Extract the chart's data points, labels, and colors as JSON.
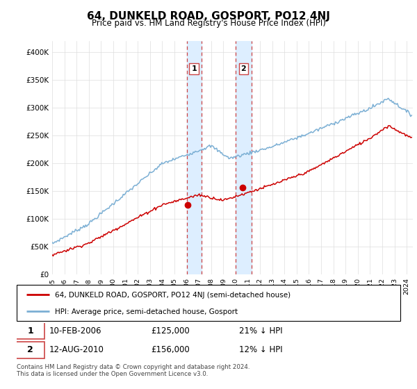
{
  "title": "64, DUNKELD ROAD, GOSPORT, PO12 4NJ",
  "subtitle": "Price paid vs. HM Land Registry's House Price Index (HPI)",
  "legend_line1": "64, DUNKELD ROAD, GOSPORT, PO12 4NJ (semi-detached house)",
  "legend_line2": "HPI: Average price, semi-detached house, Gosport",
  "transaction1_date": "10-FEB-2006",
  "transaction1_price": "£125,000",
  "transaction1_hpi": "21% ↓ HPI",
  "transaction2_date": "12-AUG-2010",
  "transaction2_price": "£156,000",
  "transaction2_hpi": "12% ↓ HPI",
  "footer": "Contains HM Land Registry data © Crown copyright and database right 2024.\nThis data is licensed under the Open Government Licence v3.0.",
  "red_color": "#cc0000",
  "blue_color": "#7bafd4",
  "highlight_color": "#ddeeff",
  "highlight_border": "#cc4444",
  "ylim": [
    0,
    420000
  ],
  "yticks": [
    0,
    50000,
    100000,
    150000,
    200000,
    250000,
    300000,
    350000,
    400000
  ],
  "ytick_labels": [
    "£0",
    "£50K",
    "£100K",
    "£150K",
    "£200K",
    "£250K",
    "£300K",
    "£350K",
    "£400K"
  ],
  "t1_year": 2006.1,
  "t1_price": 125000,
  "t2_year": 2010.6,
  "t2_price": 156000,
  "t1_span_start": 2006.0,
  "t1_span_end": 2007.2,
  "t2_span_start": 2010.0,
  "t2_span_end": 2011.3,
  "xmin": 1995,
  "xmax": 2024.5
}
